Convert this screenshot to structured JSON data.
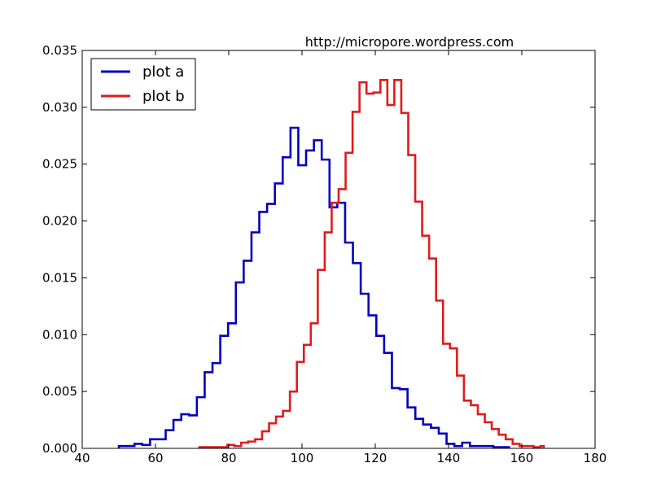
{
  "chart_data": {
    "type": "histogram-step",
    "title": "",
    "annotation": "http://micropore.wordpress.com",
    "xlabel": "",
    "ylabel": "",
    "xlim": [
      40,
      180
    ],
    "ylim": [
      0,
      0.035
    ],
    "xticks": [
      40,
      60,
      80,
      100,
      120,
      140,
      160,
      180
    ],
    "xtick_labels": [
      "40",
      "60",
      "80",
      "100",
      "120",
      "140",
      "160",
      "180"
    ],
    "yticks": [
      0,
      0.005,
      0.01,
      0.015,
      0.02,
      0.025,
      0.03,
      0.035
    ],
    "ytick_labels": [
      "0.000",
      "0.005",
      "0.010",
      "0.015",
      "0.020",
      "0.025",
      "0.030",
      "0.035"
    ],
    "grid": false,
    "legend_position": "top-left",
    "series": [
      {
        "name": "plot a",
        "color": "#0000bf",
        "bin_edges": [
          50.0,
          52.13,
          54.26,
          56.39,
          58.52,
          60.65,
          62.78,
          64.91,
          67.04,
          69.17,
          71.3,
          73.43,
          75.56,
          77.69,
          79.82,
          81.95,
          84.08,
          86.21,
          88.34,
          90.47,
          92.6,
          94.73,
          96.86,
          98.99,
          101.12,
          103.25,
          105.38,
          107.51,
          109.64,
          111.77,
          113.9,
          116.03,
          118.16,
          120.29,
          122.42,
          124.55,
          126.68,
          128.81,
          130.94,
          133.07,
          135.2,
          137.33,
          139.46,
          141.59,
          143.72,
          145.85,
          147.98,
          150.11,
          152.24,
          154.37,
          156.5
        ],
        "values": [
          0.0002,
          0.0002,
          0.0004,
          0.0003,
          0.0008,
          0.0008,
          0.0016,
          0.0025,
          0.003,
          0.0029,
          0.0045,
          0.0067,
          0.0075,
          0.0099,
          0.011,
          0.0146,
          0.0165,
          0.019,
          0.0208,
          0.0215,
          0.0233,
          0.0256,
          0.0282,
          0.0249,
          0.0262,
          0.0271,
          0.0254,
          0.0212,
          0.0216,
          0.0181,
          0.0163,
          0.0136,
          0.0117,
          0.0099,
          0.0084,
          0.0053,
          0.0052,
          0.0036,
          0.0026,
          0.0021,
          0.0018,
          0.0013,
          0.0004,
          0.0002,
          0.0005,
          0.0002,
          0.0002,
          0.0002,
          0.0001,
          0.0001
        ]
      },
      {
        "name": "plot b",
        "color": "#e01b1b",
        "bin_edges": [
          72.0,
          73.9,
          75.8,
          77.7,
          79.6,
          81.5,
          83.4,
          85.3,
          87.2,
          89.1,
          91.0,
          92.9,
          94.8,
          96.7,
          98.6,
          100.5,
          102.4,
          104.3,
          106.2,
          108.1,
          110.0,
          111.9,
          113.8,
          115.7,
          117.6,
          119.5,
          121.4,
          123.3,
          125.2,
          127.1,
          129.0,
          130.9,
          132.8,
          134.7,
          136.6,
          138.5,
          140.4,
          142.3,
          144.2,
          146.1,
          148.0,
          149.9,
          151.8,
          153.7,
          155.6,
          157.5,
          159.4,
          161.3,
          163.2,
          165.1,
          166.0
        ],
        "values": [
          0.0001,
          0.0001,
          0.0001,
          0.0001,
          0.0003,
          0.0002,
          0.0005,
          0.0006,
          0.0008,
          0.0015,
          0.0022,
          0.0028,
          0.0033,
          0.005,
          0.0076,
          0.0091,
          0.011,
          0.0157,
          0.019,
          0.0216,
          0.0228,
          0.026,
          0.0296,
          0.0322,
          0.0312,
          0.0313,
          0.0324,
          0.0302,
          0.0324,
          0.0295,
          0.0258,
          0.0217,
          0.0187,
          0.0167,
          0.013,
          0.0092,
          0.0088,
          0.0064,
          0.0042,
          0.0038,
          0.003,
          0.0023,
          0.0017,
          0.0012,
          0.0008,
          0.0004,
          0.0002,
          0.0002,
          0.0001,
          0.0002
        ]
      }
    ]
  }
}
